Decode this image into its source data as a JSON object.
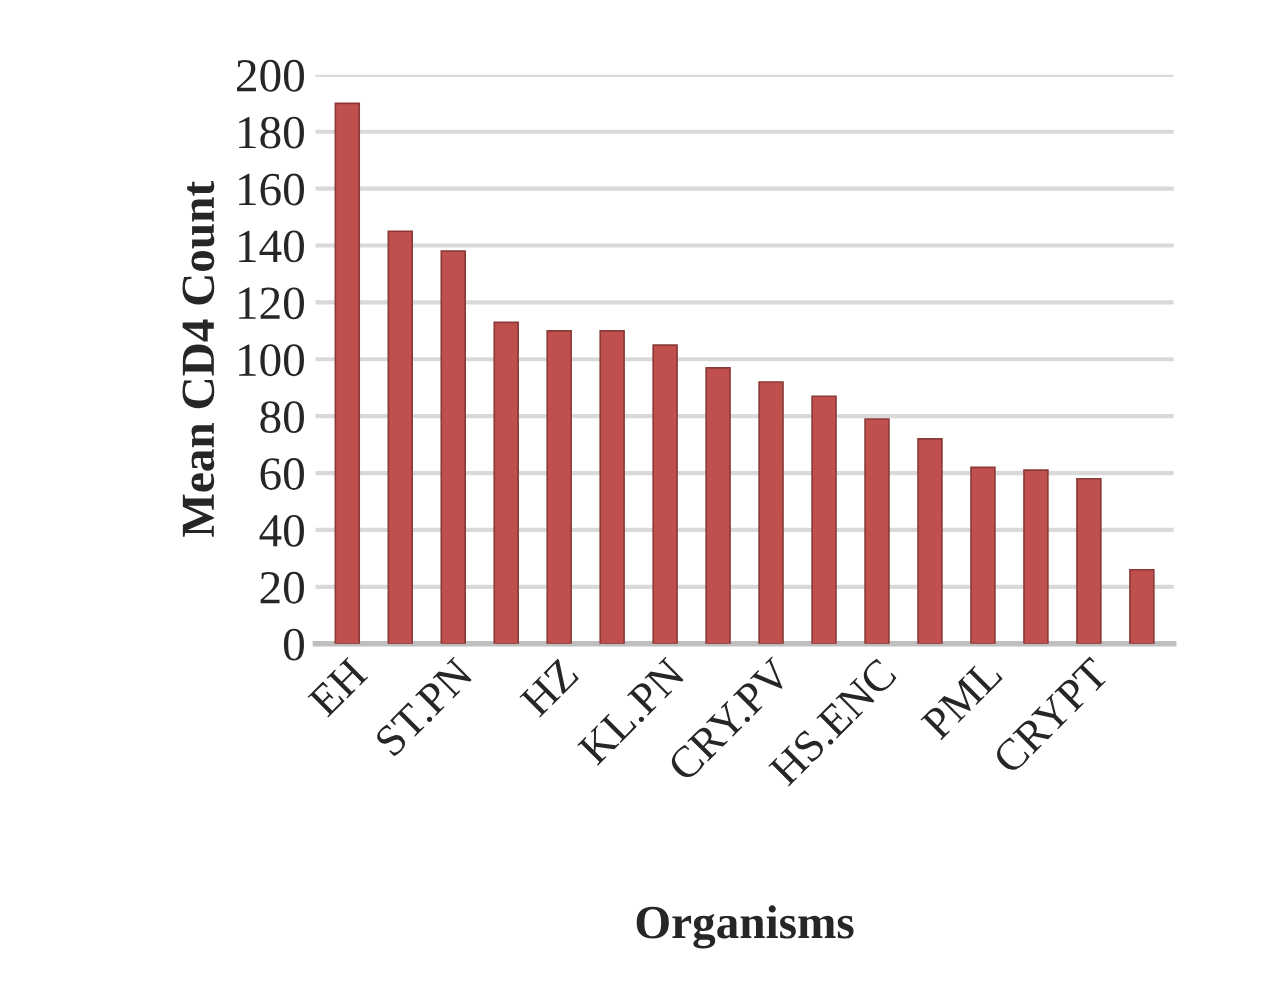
{
  "chart_data": {
    "type": "bar",
    "xlabel": "Organisms",
    "ylabel": "Mean CD4 Count",
    "categories": [
      "EH",
      null,
      "ST.PN",
      null,
      "HZ",
      null,
      "KL.PN",
      null,
      "CRY.PV",
      null,
      "HS.ENC",
      null,
      "PML",
      null,
      "CRYPT",
      null
    ],
    "values": [
      190,
      145,
      138,
      113,
      110,
      110,
      105,
      97,
      92,
      87,
      79,
      72,
      62,
      61,
      58,
      26
    ],
    "color": "#c0504d",
    "ylim": [
      0,
      200
    ],
    "yticks": [
      0,
      20,
      40,
      60,
      80,
      100,
      120,
      140,
      160,
      180,
      200
    ],
    "grid": "y"
  }
}
